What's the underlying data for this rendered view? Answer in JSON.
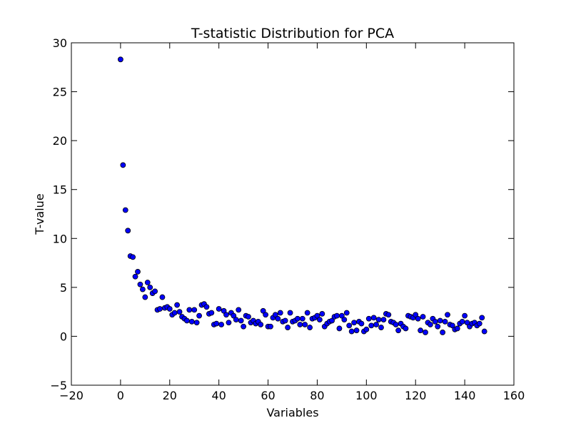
{
  "chart_data": {
    "type": "scatter",
    "title": "T-statistic Distribution for PCA",
    "xlabel": "Variables",
    "ylabel": "T-value",
    "xlim": [
      -20,
      160
    ],
    "ylim": [
      -5,
      30
    ],
    "xticks": [
      "-20",
      "0",
      "20",
      "40",
      "60",
      "80",
      "100",
      "120",
      "140",
      "160"
    ],
    "yticks": [
      "-5",
      "0",
      "5",
      "10",
      "15",
      "20",
      "25",
      "30"
    ],
    "grid": false,
    "marker_color": "#0000ff",
    "marker_edge": "#000000",
    "series": [
      {
        "x": [
          0,
          1,
          2,
          3,
          4,
          5,
          6,
          7,
          8,
          9,
          10,
          11,
          12,
          13,
          14,
          15,
          16,
          17,
          18,
          19,
          20,
          21,
          22,
          23,
          24,
          25,
          26,
          27,
          28,
          29,
          30,
          31,
          32,
          33,
          34,
          35,
          36,
          37,
          38,
          39,
          40,
          41,
          42,
          43,
          44,
          45,
          46,
          47,
          48,
          49,
          50,
          51,
          52,
          53,
          54,
          55,
          56,
          57,
          58,
          59,
          60,
          61,
          62,
          63,
          64,
          65,
          66,
          67,
          68,
          69,
          70,
          71,
          72,
          73,
          74,
          75,
          76,
          77,
          78,
          79,
          80,
          81,
          82,
          83,
          84,
          85,
          86,
          87,
          88,
          89,
          90,
          91,
          92,
          93,
          94,
          95,
          96,
          97,
          98,
          99,
          100,
          101,
          102,
          103,
          104,
          105,
          106,
          107,
          108,
          109,
          110,
          111,
          112,
          113,
          114,
          115,
          116,
          117,
          118,
          119,
          120,
          121,
          122,
          123,
          124,
          125,
          126,
          127,
          128,
          129,
          130,
          131,
          132,
          133,
          134,
          135,
          136,
          137,
          138,
          139,
          140,
          141,
          142,
          143,
          144,
          145,
          146,
          147,
          148
        ],
        "y": [
          28.3,
          17.5,
          12.9,
          10.8,
          8.2,
          8.1,
          6.1,
          6.6,
          5.3,
          4.8,
          4.0,
          5.5,
          5.0,
          4.4,
          4.6,
          2.7,
          2.8,
          4.0,
          2.9,
          3.0,
          2.8,
          2.2,
          2.4,
          3.2,
          2.5,
          2.0,
          1.8,
          1.6,
          2.7,
          1.5,
          2.7,
          1.4,
          2.1,
          3.2,
          3.3,
          3.0,
          2.3,
          2.4,
          1.2,
          1.3,
          2.8,
          1.2,
          2.6,
          2.2,
          1.4,
          2.4,
          2.1,
          1.7,
          2.7,
          1.6,
          1.0,
          2.1,
          2.0,
          1.4,
          1.6,
          1.3,
          1.5,
          1.2,
          2.6,
          2.2,
          1.0,
          1.0,
          1.9,
          2.2,
          1.8,
          2.4,
          1.5,
          1.6,
          0.9,
          2.4,
          1.5,
          1.6,
          1.8,
          1.2,
          1.8,
          1.2,
          2.4,
          0.9,
          1.8,
          1.9,
          2.1,
          1.7,
          2.3,
          1.0,
          1.3,
          1.5,
          1.6,
          2.0,
          2.1,
          0.8,
          2.1,
          1.7,
          2.4,
          1.1,
          0.5,
          1.4,
          0.6,
          1.5,
          1.3,
          0.5,
          0.7,
          1.8,
          1.1,
          1.9,
          1.2,
          1.7,
          0.9,
          1.7,
          2.3,
          2.2,
          1.5,
          1.4,
          1.2,
          0.6,
          1.3,
          1.0,
          0.8,
          2.1,
          2.0,
          1.9,
          2.2,
          1.8,
          0.6,
          2.0,
          0.4,
          1.4,
          1.2,
          1.8,
          1.5,
          1.0,
          1.6,
          0.4,
          1.5,
          2.2,
          1.2,
          1.1,
          0.7,
          0.8,
          1.3,
          1.5,
          2.1,
          1.4,
          1.0,
          1.3,
          1.4,
          1.1,
          1.3,
          1.9,
          0.5
        ]
      }
    ]
  }
}
